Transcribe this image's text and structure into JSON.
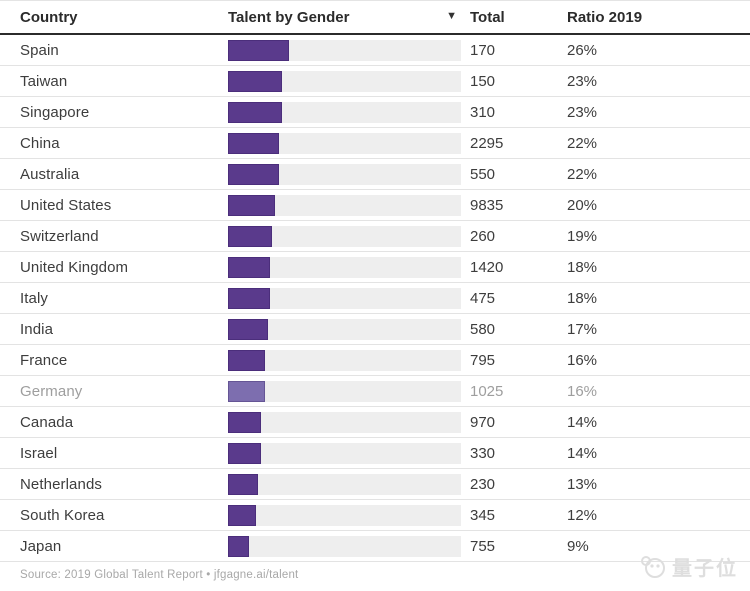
{
  "header": {
    "columns": [
      "Country",
      "Talent by Gender",
      "Total",
      "Ratio 2019"
    ],
    "sort_icon": "▼"
  },
  "colors": {
    "bar_fill": "#5a3a8c",
    "bar_fill_muted": "#7d6eaf",
    "bar_track": "#eeeeee",
    "header_rule": "#2b2b2b"
  },
  "table": {
    "rows": [
      {
        "country": "Spain",
        "total": "170",
        "ratio": "26%",
        "muted": false
      },
      {
        "country": "Taiwan",
        "total": "150",
        "ratio": "23%",
        "muted": false
      },
      {
        "country": "Singapore",
        "total": "310",
        "ratio": "23%",
        "muted": false
      },
      {
        "country": "China",
        "total": "2295",
        "ratio": "22%",
        "muted": false
      },
      {
        "country": "Australia",
        "total": "550",
        "ratio": "22%",
        "muted": false
      },
      {
        "country": "United States",
        "total": "9835",
        "ratio": "20%",
        "muted": false
      },
      {
        "country": "Switzerland",
        "total": "260",
        "ratio": "19%",
        "muted": false
      },
      {
        "country": "United Kingdom",
        "total": "1420",
        "ratio": "18%",
        "muted": false
      },
      {
        "country": "Italy",
        "total": "475",
        "ratio": "18%",
        "muted": false
      },
      {
        "country": "India",
        "total": "580",
        "ratio": "17%",
        "muted": false
      },
      {
        "country": "France",
        "total": "795",
        "ratio": "16%",
        "muted": false
      },
      {
        "country": "Germany",
        "total": "1025",
        "ratio": "16%",
        "muted": true
      },
      {
        "country": "Canada",
        "total": "970",
        "ratio": "14%",
        "muted": false
      },
      {
        "country": "Israel",
        "total": "330",
        "ratio": "14%",
        "muted": false
      },
      {
        "country": "Netherlands",
        "total": "230",
        "ratio": "13%",
        "muted": false
      },
      {
        "country": "South Korea",
        "total": "345",
        "ratio": "12%",
        "muted": false
      },
      {
        "country": "Japan",
        "total": "755",
        "ratio": "9%",
        "muted": false
      }
    ]
  },
  "footer": {
    "source": "Source: 2019 Global Talent Report • jfgagne.ai/talent"
  },
  "watermark": {
    "text": "量子位"
  },
  "chart_data": {
    "type": "bar",
    "title": "Talent by Gender",
    "categories": [
      "Spain",
      "Taiwan",
      "Singapore",
      "China",
      "Australia",
      "United States",
      "Switzerland",
      "United Kingdom",
      "Italy",
      "India",
      "France",
      "Germany",
      "Canada",
      "Israel",
      "Netherlands",
      "South Korea",
      "Japan"
    ],
    "series": [
      {
        "name": "Total",
        "values": [
          170,
          150,
          310,
          2295,
          550,
          9835,
          260,
          1420,
          475,
          580,
          795,
          1025,
          970,
          330,
          230,
          345,
          755
        ]
      },
      {
        "name": "Ratio 2019 (%)",
        "values": [
          26,
          23,
          23,
          22,
          22,
          20,
          19,
          18,
          18,
          17,
          16,
          16,
          14,
          14,
          13,
          12,
          9
        ]
      }
    ],
    "xlabel": "Country",
    "ylabel": "Ratio 2019",
    "ylim": [
      0,
      100
    ],
    "legend_position": "none",
    "grid": false,
    "layout": "horizontal bars; purple fill length equals Ratio 2019 percent of full track; sorted by Ratio 2019 descending; Germany row rendered muted/lighter"
  }
}
